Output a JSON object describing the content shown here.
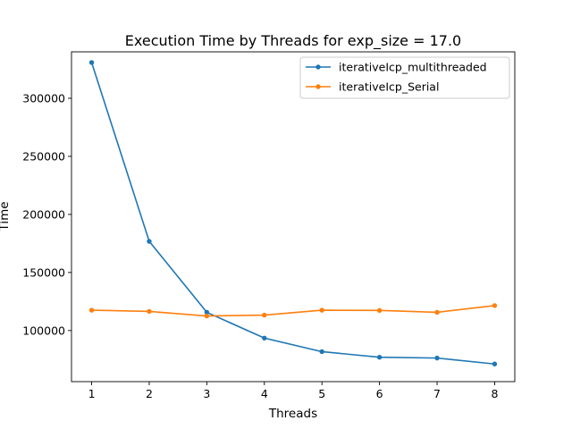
{
  "chart_data": {
    "type": "line",
    "title": "Execution Time by Threads for exp_size = 17.0",
    "xlabel": "Threads",
    "ylabel": "Time",
    "x": [
      1,
      2,
      3,
      4,
      5,
      6,
      7,
      8
    ],
    "xlim": [
      0.65,
      8.35
    ],
    "ylim": [
      56000,
      340000
    ],
    "xticks": [
      "1",
      "2",
      "3",
      "4",
      "5",
      "6",
      "7",
      "8"
    ],
    "yticks": [
      100000,
      150000,
      200000,
      250000,
      300000
    ],
    "ytick_labels": [
      "100000",
      "150000",
      "200000",
      "250000",
      "300000"
    ],
    "grid": false,
    "legend_position": "top-right",
    "series": [
      {
        "name": "iterativeIcp_multithreaded",
        "color": "#1f77b4",
        "values": [
          330800,
          176800,
          115700,
          93500,
          81800,
          77000,
          76300,
          71200
        ]
      },
      {
        "name": "iterativeIcp_Serial",
        "color": "#ff7f0e",
        "values": [
          117500,
          116500,
          112500,
          113300,
          117500,
          117300,
          115700,
          121500
        ]
      }
    ]
  }
}
